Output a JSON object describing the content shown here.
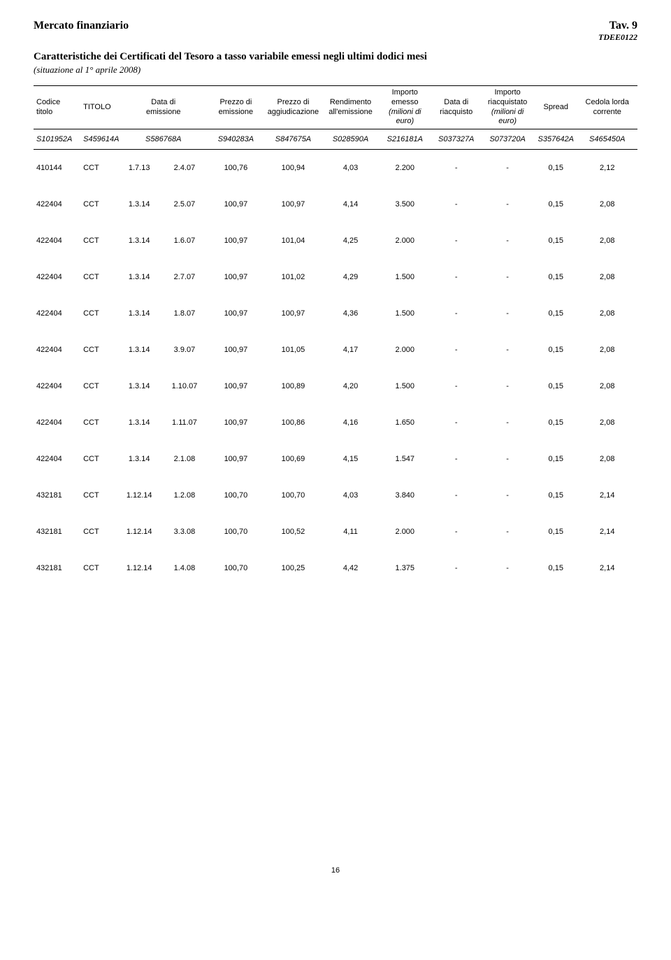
{
  "header": {
    "left_title": "Mercato finanziario",
    "right_title": "Tav. 9",
    "right_code": "TDEE0122",
    "subtitle_main": "Caratteristiche dei Certificati del Tesoro a tasso variabile emessi negli ultimi dodici mesi",
    "subtitle_sub": "(situazione al 1° aprile 2008)"
  },
  "columns": [
    {
      "label": "Codice titolo",
      "code": "S101952A"
    },
    {
      "label": "TITOLO",
      "code": "S459614A"
    },
    {
      "label": "Data di emissione",
      "code": "S586768A"
    },
    {
      "label": "Prezzo di emissione",
      "code": "S940283A"
    },
    {
      "label": "Prezzo di aggiudicazione",
      "code": "S847675A"
    },
    {
      "label": "Rendimento all'emissione",
      "code": "S028590A"
    },
    {
      "label": "Importo emesso",
      "sub": "(milioni di euro)",
      "code": "S216181A"
    },
    {
      "label": "Data di riacquisto",
      "code": "S037327A"
    },
    {
      "label": "Importo riacquistato",
      "sub": "(milioni di euro)",
      "code": "S073720A"
    },
    {
      "label": "Spread",
      "code": "S357642A"
    },
    {
      "label": "Cedola lorda corrente",
      "code": "S465450A"
    }
  ],
  "rows": [
    [
      "410144",
      "CCT",
      "1.7.13",
      "2.4.07",
      "100,76",
      "100,94",
      "4,03",
      "2.200",
      "-",
      "-",
      "0,15",
      "2,12"
    ],
    [
      "422404",
      "CCT",
      "1.3.14",
      "2.5.07",
      "100,97",
      "100,97",
      "4,14",
      "3.500",
      "-",
      "-",
      "0,15",
      "2,08"
    ],
    [
      "422404",
      "CCT",
      "1.3.14",
      "1.6.07",
      "100,97",
      "101,04",
      "4,25",
      "2.000",
      "-",
      "-",
      "0,15",
      "2,08"
    ],
    [
      "422404",
      "CCT",
      "1.3.14",
      "2.7.07",
      "100,97",
      "101,02",
      "4,29",
      "1.500",
      "-",
      "-",
      "0,15",
      "2,08"
    ],
    [
      "422404",
      "CCT",
      "1.3.14",
      "1.8.07",
      "100,97",
      "100,97",
      "4,36",
      "1.500",
      "-",
      "-",
      "0,15",
      "2,08"
    ],
    [
      "422404",
      "CCT",
      "1.3.14",
      "3.9.07",
      "100,97",
      "101,05",
      "4,17",
      "2.000",
      "-",
      "-",
      "0,15",
      "2,08"
    ],
    [
      "422404",
      "CCT",
      "1.3.14",
      "1.10.07",
      "100,97",
      "100,89",
      "4,20",
      "1.500",
      "-",
      "-",
      "0,15",
      "2,08"
    ],
    [
      "422404",
      "CCT",
      "1.3.14",
      "1.11.07",
      "100,97",
      "100,86",
      "4,16",
      "1.650",
      "-",
      "-",
      "0,15",
      "2,08"
    ],
    [
      "422404",
      "CCT",
      "1.3.14",
      "2.1.08",
      "100,97",
      "100,69",
      "4,15",
      "1.547",
      "-",
      "-",
      "0,15",
      "2,08"
    ],
    [
      "432181",
      "CCT",
      "1.12.14",
      "1.2.08",
      "100,70",
      "100,70",
      "4,03",
      "3.840",
      "-",
      "-",
      "0,15",
      "2,14"
    ],
    [
      "432181",
      "CCT",
      "1.12.14",
      "3.3.08",
      "100,70",
      "100,52",
      "4,11",
      "2.000",
      "-",
      "-",
      "0,15",
      "2,14"
    ],
    [
      "432181",
      "CCT",
      "1.12.14",
      "1.4.08",
      "100,70",
      "100,25",
      "4,42",
      "1.375",
      "-",
      "-",
      "0,15",
      "2,14"
    ]
  ],
  "page_number": "16",
  "style": {
    "column_widths_pct": [
      8,
      6,
      7,
      8,
      9,
      10,
      9,
      9,
      8,
      9,
      7,
      10
    ]
  }
}
